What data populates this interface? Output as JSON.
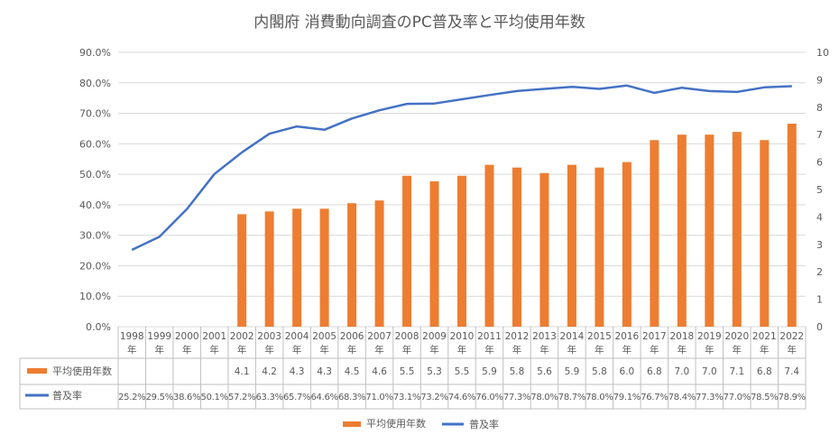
{
  "chart_data": {
    "type": "bar",
    "title": "内閣府 消費動向調査のPC普及率と平均使用年数",
    "categories": [
      "1998年",
      "1999年",
      "2000年",
      "2001年",
      "2002年",
      "2003年",
      "2004年",
      "2005年",
      "2006年",
      "2007年",
      "2008年",
      "2009年",
      "2010年",
      "2011年",
      "2012年",
      "2013年",
      "2014年",
      "2015年",
      "2016年",
      "2017年",
      "2018年",
      "2019年",
      "2020年",
      "2021年",
      "2022年"
    ],
    "series": [
      {
        "name": "平均使用年数",
        "type": "bar",
        "axis": "right",
        "color": "#ED7D31",
        "values": [
          null,
          null,
          null,
          null,
          4.1,
          4.2,
          4.3,
          4.3,
          4.5,
          4.6,
          5.5,
          5.3,
          5.5,
          5.9,
          5.8,
          5.6,
          5.9,
          5.8,
          6.0,
          6.8,
          7.0,
          7.0,
          7.1,
          6.8,
          7.4
        ]
      },
      {
        "name": "普及率",
        "type": "line",
        "axis": "left",
        "color": "#4472C4",
        "values": [
          25.2,
          29.5,
          38.6,
          50.1,
          57.2,
          63.3,
          65.7,
          64.6,
          68.3,
          71.0,
          73.1,
          73.2,
          74.6,
          76.0,
          77.3,
          78.0,
          78.7,
          78.0,
          79.1,
          76.7,
          78.4,
          77.3,
          77.0,
          78.5,
          78.9
        ]
      }
    ],
    "table_labels": {
      "bar": [
        "",
        "",
        "",
        "",
        "4.1",
        "4.2",
        "4.3",
        "4.3",
        "4.5",
        "4.6",
        "5.5",
        "5.3",
        "5.5",
        "5.9",
        "5.8",
        "5.6",
        "5.9",
        "5.8",
        "6.0",
        "6.8",
        "7.0",
        "7.0",
        "7.1",
        "6.8",
        "7.4"
      ],
      "line": [
        "25.2%",
        "29.5%",
        "38.6%",
        "50.1%",
        "57.2%",
        "63.3%",
        "65.7%",
        "64.6%",
        "68.3%",
        "71.0%",
        "73.1%",
        "73.2%",
        "74.6%",
        "76.0%",
        "77.3%",
        "78.0%",
        "78.7%",
        "78.0%",
        "79.1%",
        "76.7%",
        "78.4%",
        "77.3%",
        "77.0%",
        "78.5%",
        "78.9%"
      ]
    },
    "y_left": {
      "min": 0,
      "max": 90,
      "step": 10,
      "ticks": [
        "0.0%",
        "10.0%",
        "20.0%",
        "30.0%",
        "40.0%",
        "50.0%",
        "60.0%",
        "70.0%",
        "80.0%",
        "90.0%"
      ]
    },
    "y_right": {
      "min": 0,
      "max": 10,
      "step": 1,
      "ticks": [
        "0",
        "1",
        "2",
        "3",
        "4",
        "5",
        "6",
        "7",
        "8",
        "9",
        "10"
      ]
    },
    "grid": true,
    "legend": {
      "position": "bottom",
      "items": [
        "平均使用年数",
        "普及率"
      ]
    },
    "data_table": true
  }
}
